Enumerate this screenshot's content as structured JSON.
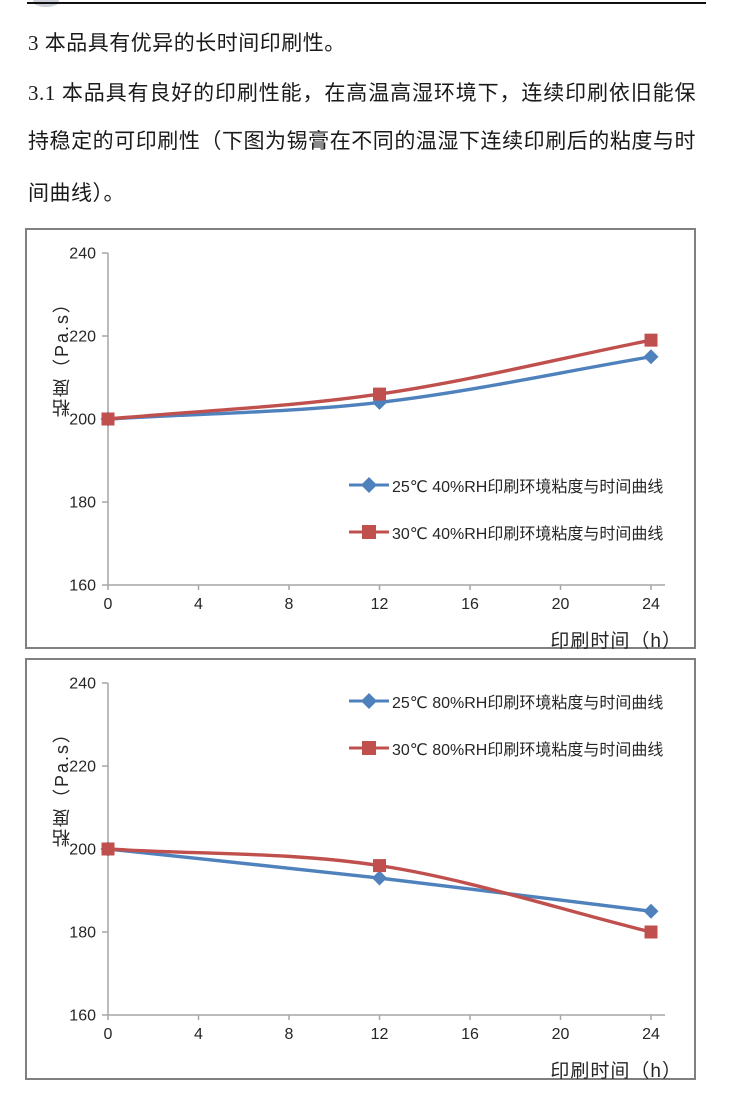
{
  "document": {
    "paragraph1": "3 本品具有优异的长时间印刷性。",
    "paragraph2_line1": "3.1 本品具有良好的印刷性能，在高温高湿环境下，连续印刷依旧能保",
    "paragraph2_line2": "持稳定的可印刷性（下图为锡膏在不同的温湿下连续印刷后的粘度与时",
    "paragraph2_line3": "间曲线）。"
  },
  "colors": {
    "series_blue": "#4F81BD",
    "series_red": "#C0504D",
    "axis_line": "#A6A6A6",
    "tick_text": "#262626",
    "chart_border": "#808080"
  },
  "chart_data": [
    {
      "type": "line",
      "title": "",
      "xlabel": "印刷时间（h）",
      "ylabel": "粘度（Pa.s）",
      "x": [
        0,
        12,
        24
      ],
      "xticks": [
        0,
        4,
        8,
        12,
        16,
        20,
        24
      ],
      "yticks": [
        160,
        180,
        200,
        220,
        240
      ],
      "xlim": [
        0,
        24
      ],
      "ylim": [
        160,
        240
      ],
      "grid": false,
      "smooth": true,
      "legend_position": "inside-center-right",
      "series": [
        {
          "name": "25℃ 40%RH印刷环境粘度与时间曲线",
          "values": [
            200,
            204,
            215
          ],
          "color": "#4F81BD",
          "marker": "diamond"
        },
        {
          "name": "30℃ 40%RH印刷环境粘度与时间曲线",
          "values": [
            200,
            206,
            219
          ],
          "color": "#C0504D",
          "marker": "square"
        }
      ]
    },
    {
      "type": "line",
      "title": "",
      "xlabel": "印刷时间（h）",
      "ylabel": "粘度（Pa.s）",
      "x": [
        0,
        12,
        24
      ],
      "xticks": [
        0,
        4,
        8,
        12,
        16,
        20,
        24
      ],
      "yticks": [
        160,
        180,
        200,
        220,
        240
      ],
      "xlim": [
        0,
        24
      ],
      "ylim": [
        160,
        240
      ],
      "grid": false,
      "smooth": true,
      "legend_position": "inside-top-right",
      "series": [
        {
          "name": "25℃ 80%RH印刷环境粘度与时间曲线",
          "values": [
            200,
            193,
            185
          ],
          "color": "#4F81BD",
          "marker": "diamond"
        },
        {
          "name": "30℃ 80%RH印刷环境粘度与时间曲线",
          "values": [
            200,
            196,
            180
          ],
          "color": "#C0504D",
          "marker": "square"
        }
      ]
    }
  ]
}
